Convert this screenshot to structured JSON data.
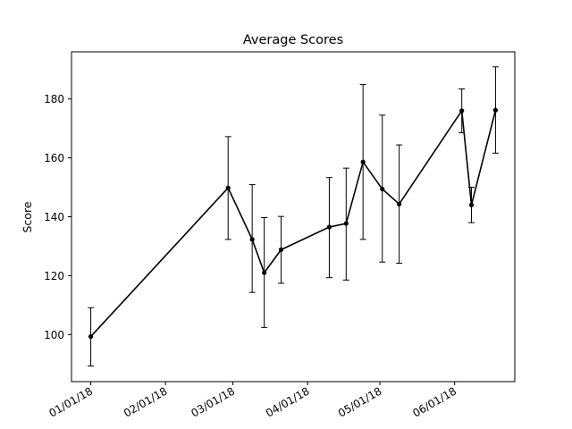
{
  "chart_data": {
    "type": "line",
    "title": "Average Scores",
    "xlabel": "",
    "ylabel": "Score",
    "x_tick_labels": [
      "01/01/18",
      "02/01/18",
      "03/01/18",
      "04/01/18",
      "05/01/18",
      "06/01/18"
    ],
    "y_ticks": [
      100,
      120,
      140,
      160,
      180
    ],
    "xlim": [
      "2017-12-24",
      "2018-06-26"
    ],
    "ylim": [
      84,
      196
    ],
    "grid": false,
    "error_bars": true,
    "line_color": "#000000",
    "series": [
      {
        "points": [
          {
            "x": "2018-01-01",
            "y": 99.3,
            "err_low": 89.3,
            "err_high": 109.1
          },
          {
            "x": "2018-02-27",
            "y": 149.8,
            "err_low": 132.3,
            "err_high": 167.2
          },
          {
            "x": "2018-03-09",
            "y": 132.3,
            "err_low": 114.3,
            "err_high": 150.9
          },
          {
            "x": "2018-03-14",
            "y": 121.0,
            "err_low": 102.4,
            "err_high": 139.7
          },
          {
            "x": "2018-03-21",
            "y": 128.8,
            "err_low": 117.4,
            "err_high": 140.1
          },
          {
            "x": "2018-04-10",
            "y": 136.5,
            "err_low": 119.3,
            "err_high": 153.3
          },
          {
            "x": "2018-04-17",
            "y": 137.7,
            "err_low": 118.5,
            "err_high": 156.5
          },
          {
            "x": "2018-04-24",
            "y": 158.6,
            "err_low": 132.3,
            "err_high": 184.9
          },
          {
            "x": "2018-05-02",
            "y": 149.4,
            "err_low": 124.6,
            "err_high": 174.5
          },
          {
            "x": "2018-05-09",
            "y": 144.3,
            "err_low": 124.2,
            "err_high": 164.4
          },
          {
            "x": "2018-06-04",
            "y": 176.0,
            "err_low": 168.5,
            "err_high": 183.4
          },
          {
            "x": "2018-06-08",
            "y": 144.0,
            "err_low": 138.0,
            "err_high": 150.0
          },
          {
            "x": "2018-06-18",
            "y": 176.2,
            "err_low": 161.6,
            "err_high": 190.9
          }
        ]
      }
    ]
  }
}
